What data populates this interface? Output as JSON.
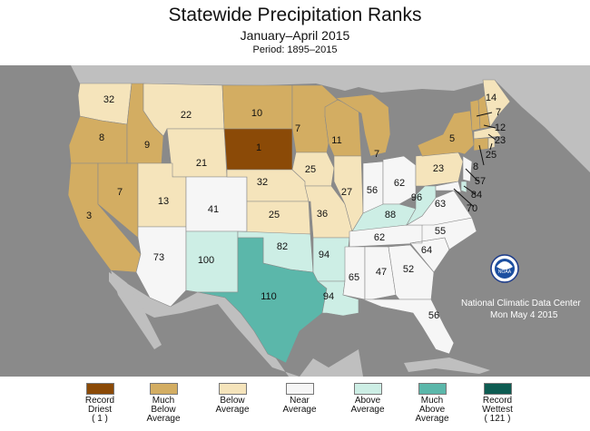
{
  "header": {
    "title": "Statewide Precipitation Ranks",
    "subtitle": "January–April 2015",
    "period": "Period: 1895–2015"
  },
  "colors": {
    "record_driest": "#8b4a07",
    "much_below": "#d3ad62",
    "below": "#f5e4bb",
    "near": "#f6f6f6",
    "above": "#cdeee5",
    "much_above": "#5bb7aa",
    "record_wettest": "#0d5c52",
    "land_out_of_scope": "#bfbfbf",
    "ocean": "#8a8a8a"
  },
  "ranks": {
    "WA": "32",
    "OR": "8",
    "CA": "3",
    "ID": "9",
    "NV": "7",
    "MT": "22",
    "WY": "21",
    "UT": "13",
    "AZ": "73",
    "CO": "41",
    "NM": "100",
    "ND": "10",
    "SD": "1",
    "NE": "32",
    "KS": "25",
    "OK": "82",
    "TX": "110",
    "MN": "7",
    "IA": "25",
    "MO": "36",
    "AR": "94",
    "LA": "94",
    "WI": "11",
    "IL": "27",
    "MI": "7",
    "IN": "56",
    "OH": "62",
    "KY": "88",
    "TN": "62",
    "MS": "65",
    "AL": "47",
    "GA": "52",
    "FL": "56",
    "SC": "64",
    "NC": "55",
    "VA": "63",
    "WV": "96",
    "PA": "23",
    "NY": "5",
    "VT": "7",
    "NH": "12",
    "ME": "14",
    "MA": "23",
    "RI": "25",
    "CT": "8",
    "NJ": "57",
    "DE": "84",
    "MD": "70"
  },
  "noaa": {
    "logo_text": "NOAA",
    "center": "National Climatic Data Center",
    "date": "Mon May  4 2015"
  },
  "legend": [
    {
      "label": "Record\nDriest\n( 1 )",
      "color": "#8b4a07"
    },
    {
      "label": "Much\nBelow\nAverage",
      "color": "#d3ad62"
    },
    {
      "label": "Below\nAverage",
      "color": "#f5e4bb"
    },
    {
      "label": "Near\nAverage",
      "color": "#f6f6f6"
    },
    {
      "label": "Above\nAverage",
      "color": "#cdeee5"
    },
    {
      "label": "Much\nAbove\nAverage",
      "color": "#5bb7aa"
    },
    {
      "label": "Record\nWettest\n( 121 )",
      "color": "#0d5c52"
    }
  ]
}
